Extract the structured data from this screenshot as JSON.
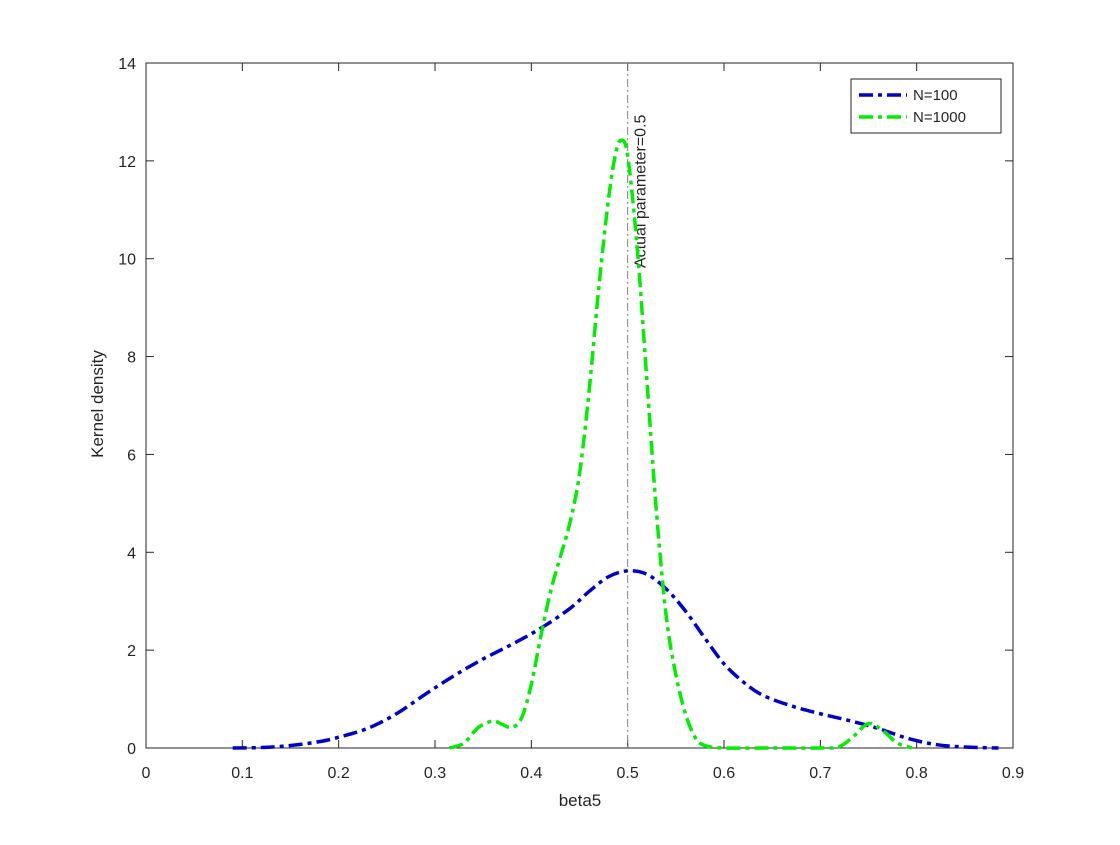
{
  "chart_data": {
    "type": "line",
    "title": "",
    "xlabel": "beta5",
    "ylabel": "Kernel density",
    "xlim": [
      0,
      0.9
    ],
    "ylim": [
      0,
      14
    ],
    "xticks": [
      0,
      0.1,
      0.2,
      0.3,
      0.4,
      0.5,
      0.6,
      0.7,
      0.8,
      0.9
    ],
    "yticks": [
      0,
      2,
      4,
      6,
      8,
      10,
      12,
      14
    ],
    "xtick_labels": [
      "0",
      "0.1",
      "0.2",
      "0.3",
      "0.4",
      "0.5",
      "0.6",
      "0.7",
      "0.8",
      "0.9"
    ],
    "ytick_labels": [
      "0",
      "2",
      "4",
      "6",
      "8",
      "10",
      "12",
      "14"
    ],
    "grid": false,
    "legend_position": "top-right",
    "series": [
      {
        "name": "N=100",
        "color": "#0000cc",
        "line_style": "dash-dot",
        "points": [
          [
            0.09,
            0.0
          ],
          [
            0.12,
            0.01
          ],
          [
            0.15,
            0.05
          ],
          [
            0.18,
            0.13
          ],
          [
            0.2,
            0.22
          ],
          [
            0.23,
            0.4
          ],
          [
            0.26,
            0.7
          ],
          [
            0.29,
            1.1
          ],
          [
            0.32,
            1.48
          ],
          [
            0.35,
            1.82
          ],
          [
            0.38,
            2.12
          ],
          [
            0.41,
            2.45
          ],
          [
            0.44,
            2.85
          ],
          [
            0.46,
            3.2
          ],
          [
            0.48,
            3.5
          ],
          [
            0.5,
            3.62
          ],
          [
            0.52,
            3.55
          ],
          [
            0.54,
            3.25
          ],
          [
            0.56,
            2.8
          ],
          [
            0.58,
            2.25
          ],
          [
            0.6,
            1.72
          ],
          [
            0.62,
            1.35
          ],
          [
            0.64,
            1.08
          ],
          [
            0.67,
            0.86
          ],
          [
            0.7,
            0.7
          ],
          [
            0.73,
            0.56
          ],
          [
            0.76,
            0.4
          ],
          [
            0.79,
            0.2
          ],
          [
            0.82,
            0.07
          ],
          [
            0.85,
            0.02
          ],
          [
            0.885,
            0.0
          ]
        ]
      },
      {
        "name": "N=1000",
        "color": "#00ee00",
        "line_style": "dash-dot",
        "points": [
          [
            0.315,
            0.0
          ],
          [
            0.33,
            0.1
          ],
          [
            0.345,
            0.42
          ],
          [
            0.36,
            0.55
          ],
          [
            0.37,
            0.48
          ],
          [
            0.38,
            0.42
          ],
          [
            0.39,
            0.62
          ],
          [
            0.4,
            1.3
          ],
          [
            0.41,
            2.3
          ],
          [
            0.42,
            3.2
          ],
          [
            0.43,
            3.9
          ],
          [
            0.44,
            4.6
          ],
          [
            0.45,
            5.6
          ],
          [
            0.46,
            7.3
          ],
          [
            0.47,
            9.4
          ],
          [
            0.48,
            11.2
          ],
          [
            0.487,
            12.1
          ],
          [
            0.493,
            12.42
          ],
          [
            0.5,
            12.1
          ],
          [
            0.51,
            10.2
          ],
          [
            0.52,
            7.5
          ],
          [
            0.53,
            4.8
          ],
          [
            0.54,
            2.7
          ],
          [
            0.55,
            1.5
          ],
          [
            0.56,
            0.7
          ],
          [
            0.57,
            0.22
          ],
          [
            0.58,
            0.05
          ],
          [
            0.6,
            0.0
          ],
          [
            0.65,
            0.0
          ],
          [
            0.7,
            0.0
          ],
          [
            0.72,
            0.03
          ],
          [
            0.735,
            0.25
          ],
          [
            0.75,
            0.5
          ],
          [
            0.765,
            0.35
          ],
          [
            0.78,
            0.1
          ],
          [
            0.795,
            0.0
          ]
        ]
      }
    ],
    "reference_line": {
      "x": 0.5,
      "label": "Actual parameter=0.5",
      "color": "#7f7f7f"
    }
  }
}
